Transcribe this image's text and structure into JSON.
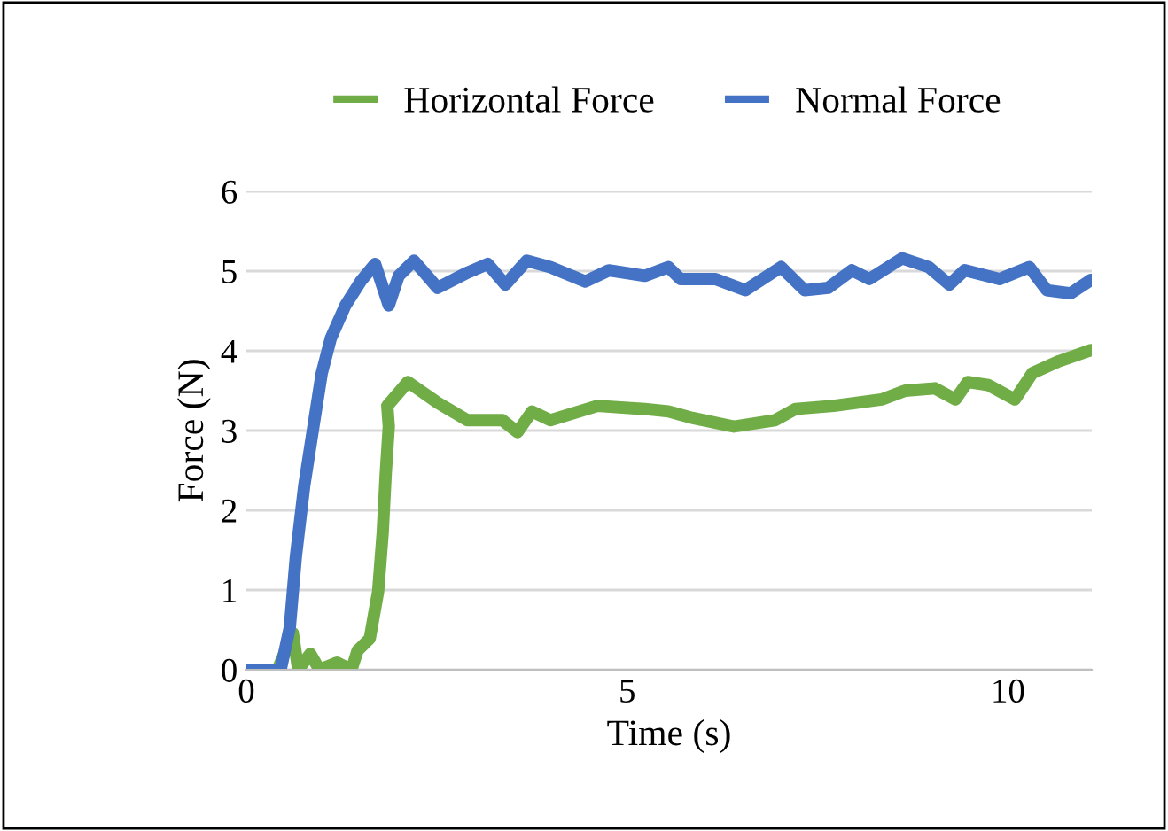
{
  "chart_data": {
    "type": "line",
    "xlabel": "Time (s)",
    "ylabel": "Force (N)",
    "xlim": [
      0,
      11.1
    ],
    "xticks": [
      0,
      5,
      10
    ],
    "ylim": [
      0,
      6
    ],
    "yticks": [
      0,
      1,
      2,
      3,
      4,
      5,
      6
    ],
    "grid": "y",
    "legend": "top",
    "line_style": "solid",
    "series": [
      {
        "name": "Horizontal Force",
        "color": "#70ad47",
        "x": [
          0.03,
          0.41,
          0.61,
          0.68,
          0.84,
          0.96,
          1.19,
          1.38,
          1.46,
          1.62,
          1.73,
          1.79,
          1.83,
          1.87,
          1.85,
          2.12,
          2.51,
          2.9,
          3.36,
          3.56,
          3.75,
          3.99,
          4.61,
          5.23,
          5.54,
          5.85,
          6.4,
          6.94,
          7.21,
          7.71,
          8.34,
          8.65,
          9.04,
          9.31,
          9.47,
          9.74,
          10.09,
          10.32,
          10.67,
          11.09
        ],
        "values": [
          0,
          0,
          0.46,
          0,
          0.2,
          0,
          0.09,
          0,
          0.24,
          0.39,
          0.98,
          1.72,
          2.46,
          3.05,
          3.31,
          3.61,
          3.35,
          3.13,
          3.13,
          2.98,
          3.24,
          3.13,
          3.31,
          3.27,
          3.24,
          3.16,
          3.05,
          3.13,
          3.27,
          3.31,
          3.39,
          3.5,
          3.53,
          3.39,
          3.61,
          3.57,
          3.39,
          3.72,
          3.87,
          4.01
        ]
      },
      {
        "name": "Normal Force",
        "color": "#4472c4",
        "x": [
          0.01,
          0.45,
          0.57,
          0.65,
          0.76,
          0.88,
          0.99,
          1.11,
          1.3,
          1.5,
          1.69,
          1.87,
          2.0,
          2.2,
          2.51,
          2.9,
          3.17,
          3.4,
          3.68,
          3.99,
          4.45,
          4.76,
          5.23,
          5.54,
          5.7,
          6.16,
          6.55,
          7.02,
          7.33,
          7.64,
          7.95,
          8.18,
          8.61,
          8.96,
          9.23,
          9.43,
          9.89,
          10.28,
          10.51,
          10.82,
          11.09
        ],
        "values": [
          0,
          0,
          0.53,
          1.42,
          2.31,
          3.05,
          3.72,
          4.16,
          4.57,
          4.87,
          5.09,
          4.57,
          4.94,
          5.13,
          4.79,
          4.98,
          5.09,
          4.83,
          5.13,
          5.05,
          4.87,
          5.01,
          4.94,
          5.05,
          4.9,
          4.9,
          4.76,
          5.05,
          4.76,
          4.79,
          5.01,
          4.9,
          5.16,
          5.05,
          4.83,
          5.01,
          4.9,
          5.05,
          4.76,
          4.72,
          4.89
        ]
      }
    ]
  }
}
